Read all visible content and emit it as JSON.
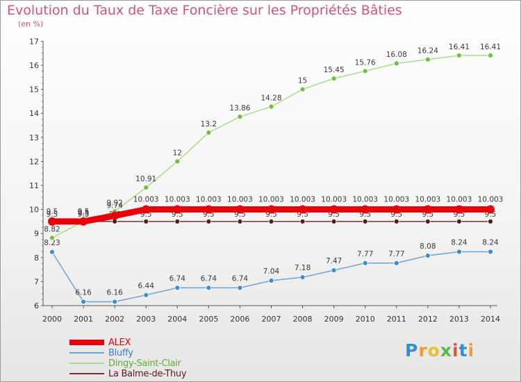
{
  "title": "Evolution du Taux de Taxe Foncière sur les Propriétés Bâties",
  "subtitle": "(en %)",
  "logo": {
    "letters": [
      "P",
      "r",
      "o",
      "x",
      "i",
      "t",
      "i"
    ],
    "colors": [
      "#2f8fd6",
      "#f29b2a",
      "#e8c12c",
      "#56b847",
      "#e7522e",
      "#2f8fd6",
      "#f29b2a"
    ]
  },
  "chart_data": {
    "type": "line",
    "title": "Evolution du Taux de Taxe Foncière sur les Propriétés Bâties",
    "ylabel": "(en %)",
    "xlabel": "",
    "categories": [
      "2000",
      "2001",
      "2002",
      "2003",
      "2004",
      "2005",
      "2006",
      "2007",
      "2008",
      "2009",
      "2010",
      "2011",
      "2012",
      "2013",
      "2014"
    ],
    "ylim": [
      6,
      17
    ],
    "yticks": [
      "6",
      "7",
      "8",
      "9",
      "10",
      "11",
      "12",
      "13",
      "14",
      "15",
      "16",
      "17"
    ],
    "grid": false,
    "legend_position": "bottom-left",
    "series": [
      {
        "name": "ALEX",
        "color": "#e8000b",
        "point_color": "#e8000b",
        "values": [
          9.5,
          9.5,
          9.74,
          10.003,
          10.003,
          10.003,
          10.003,
          10.003,
          10.003,
          10.003,
          10.003,
          10.003,
          10.003,
          10.003,
          10.003
        ],
        "labels": [
          "9.5",
          "9.5",
          "9.74",
          "10.003",
          "10.003",
          "10.003",
          "10.003",
          "10.003",
          "10.003",
          "10.003",
          "10.003",
          "10.003",
          "10.003",
          "10.003",
          "10.003"
        ]
      },
      {
        "name": "Bluffy",
        "color": "#6fa4d2",
        "point_color": "#3d8ccd",
        "values": [
          8.23,
          6.16,
          6.16,
          6.44,
          6.74,
          6.74,
          6.74,
          7.04,
          7.18,
          7.47,
          7.77,
          7.77,
          8.08,
          8.24,
          8.24
        ],
        "labels": [
          "8.23",
          "6.16",
          "6.16",
          "6.44",
          "6.74",
          "6.74",
          "6.74",
          "7.04",
          "7.18",
          "7.47",
          "7.77",
          "7.77",
          "8.08",
          "8.24",
          "8.24"
        ]
      },
      {
        "name": "Dingy-Saint-Clair",
        "color": "#a6dd8c",
        "point_color": "#6fbf3c",
        "values": [
          8.82,
          9.5,
          9.92,
          10.91,
          12,
          13.2,
          13.86,
          14.28,
          15,
          15.45,
          15.76,
          16.08,
          16.24,
          16.41,
          16.41
        ],
        "labels": [
          "8.82",
          "9.5",
          "9.92",
          "10.91",
          "12",
          "13.2",
          "13.86",
          "14.28",
          "15",
          "15.45",
          "15.76",
          "16.08",
          "16.24",
          "16.41",
          "16.41"
        ]
      },
      {
        "name": "La Balme-de-Thuy",
        "color": "#7a2e32",
        "point_color": "#5c1a1e",
        "values": [
          9.5,
          9.5,
          9.5,
          9.5,
          9.5,
          9.5,
          9.5,
          9.5,
          9.5,
          9.5,
          9.5,
          9.5,
          9.5,
          9.5,
          9.5
        ],
        "labels": [
          "9.5",
          "9.5",
          "9.5",
          "9.5",
          "9.5",
          "9.5",
          "9.5",
          "9.5",
          "9.5",
          "9.5",
          "9.5",
          "9.5",
          "9.5",
          "9.5",
          "9.5"
        ]
      }
    ]
  }
}
